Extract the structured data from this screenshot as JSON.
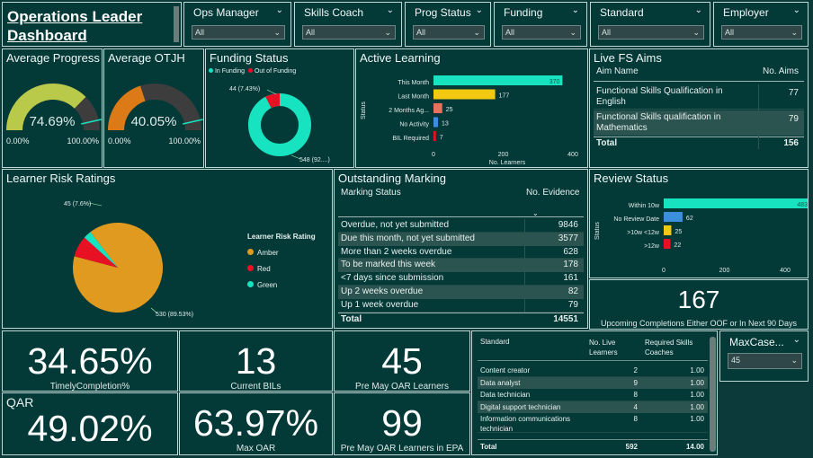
{
  "title_line1": "Operations Leader",
  "title_line2": "Dashboard",
  "slicers": [
    {
      "label": "Ops Manager",
      "value": "All"
    },
    {
      "label": "Skills Coach",
      "value": "All"
    },
    {
      "label": "Prog Status",
      "value": "All"
    },
    {
      "label": "Funding",
      "value": "All"
    },
    {
      "label": "Standard",
      "value": "All"
    },
    {
      "label": "Employer",
      "value": "All"
    }
  ],
  "avg_progress": {
    "title": "Average Progress",
    "value": "74.69%",
    "fraction": 0.7469,
    "min": "0.00%",
    "max": "100.00%"
  },
  "avg_otjh": {
    "title": "Average OTJH",
    "value": "40.05%",
    "fraction": 0.4005,
    "min": "0.00%",
    "max": "100.00%"
  },
  "funding": {
    "title": "Funding Status",
    "legend": [
      "In Funding",
      "Out of Funding"
    ],
    "label_out": "44 (7.43%)",
    "label_in": "548 (92....)",
    "colors": {
      "in": "#18e3c0",
      "out": "#e81123"
    }
  },
  "active_learning": {
    "title": "Active Learning",
    "axis_title": "Status",
    "xlabel": "No. Learners",
    "ticks": [
      "0",
      "200",
      "400"
    ],
    "max": 400,
    "rows": [
      {
        "label": "This Month",
        "value": 370,
        "text": "370",
        "color": "#18e3c0"
      },
      {
        "label": "Last Month",
        "value": 177,
        "text": "177",
        "color": "#f2c811"
      },
      {
        "label": "2 Months Ag...",
        "value": 25,
        "text": "25",
        "color": "#e8735a"
      },
      {
        "label": "No Activity",
        "value": 13,
        "text": "13",
        "color": "#3c8fdd"
      },
      {
        "label": "BIL Required",
        "value": 7,
        "text": "7",
        "color": "#e81123"
      }
    ]
  },
  "fs_aims": {
    "title": "Live FS Aims",
    "col1": "Aim Name",
    "col2": "No. Aims",
    "rows": [
      {
        "name": "Functional Skills Qualification in English",
        "value": "77"
      },
      {
        "name": "Functional Skills qualification in Mathematics",
        "value": "79"
      }
    ],
    "total_label": "Total",
    "total_value": "156"
  },
  "risk": {
    "title": "Learner Risk Ratings",
    "legend_title": "Learner Risk Rating",
    "legend": [
      "Amber",
      "Red",
      "Green"
    ],
    "label_red": "45 (7.6%)",
    "label_amber": "530 (89.53%)"
  },
  "marking": {
    "title": "Outstanding Marking",
    "col1": "Marking Status",
    "col2": "No. Evidence",
    "rows": [
      {
        "name": "Overdue, not yet submitted",
        "value": "9846"
      },
      {
        "name": "Due this month, not yet submitted",
        "value": "3577"
      },
      {
        "name": "More than 2 weeks overdue",
        "value": "628"
      },
      {
        "name": "To be marked this week",
        "value": "178"
      },
      {
        "name": "<7 days since submission",
        "value": "161"
      },
      {
        "name": "Up 2 weeks overdue",
        "value": "82"
      },
      {
        "name": "Up 1 week overdue",
        "value": "79"
      }
    ],
    "total_label": "Total",
    "total_value": "14551"
  },
  "review": {
    "title": "Review Status",
    "axis_title": "Status",
    "ticks": [
      "0",
      "200",
      "400"
    ],
    "max": 400,
    "rows": [
      {
        "label": "Within 10w",
        "value": 483,
        "text": "483",
        "color": "#18e3c0"
      },
      {
        "label": "No Review Date",
        "value": 62,
        "text": "62",
        "color": "#3c8fdd"
      },
      {
        "label": ">10w <12w",
        "value": 25,
        "text": "25",
        "color": "#f2c811"
      },
      {
        "label": ">12w",
        "value": 22,
        "text": "22",
        "color": "#e81123"
      }
    ]
  },
  "upcoming": {
    "value": "167",
    "caption": "Upcoming Completions Either OOF or In Next 90 Days"
  },
  "kpis": {
    "timely": {
      "value": "34.65%",
      "caption": "TimelyCompletion%"
    },
    "bils": {
      "value": "13",
      "caption": "Current BILs"
    },
    "premay": {
      "value": "45",
      "caption": "Pre May OAR Learners"
    },
    "qar_label": "QAR",
    "qar": {
      "value": "49.02%"
    },
    "maxoar": {
      "value": "63.97%",
      "caption": "Max OAR"
    },
    "premay_epa": {
      "value": "99",
      "caption": "Pre May OAR Learners in EPA"
    }
  },
  "standards": {
    "col1": "Standard",
    "col2a": "No. Live",
    "col2b": "Learners",
    "col3a": "Required Skills",
    "col3b": "Coaches",
    "rows": [
      {
        "name": "Content creator",
        "learners": "2",
        "coaches": "1.00"
      },
      {
        "name": "Data analyst",
        "learners": "9",
        "coaches": "1.00"
      },
      {
        "name": "Data technician",
        "learners": "8",
        "coaches": "1.00"
      },
      {
        "name": "Digital support technician",
        "learners": "4",
        "coaches": "1.00"
      },
      {
        "name": "Information communications technician",
        "learners": "8",
        "coaches": "1.00"
      }
    ],
    "total_label": "Total",
    "total_learners": "592",
    "total_coaches": "14.00"
  },
  "maxcase": {
    "label": "MaxCase...",
    "value": "45"
  }
}
